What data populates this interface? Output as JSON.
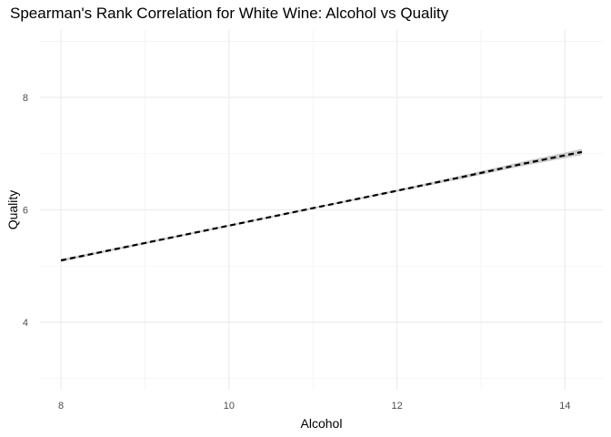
{
  "chart_data": {
    "type": "line",
    "title": "Spearman's Rank Correlation for White Wine: Alcohol vs Quality",
    "xlabel": "Alcohol",
    "ylabel": "Quality",
    "xlim": [
      7.75,
      14.45
    ],
    "ylim": [
      2.8,
      9.2
    ],
    "x_ticks": [
      8,
      10,
      12,
      14
    ],
    "y_ticks": [
      4,
      6,
      8
    ],
    "grid": true,
    "series": [
      {
        "style": "dashed",
        "color": "#000000",
        "band_color": "#bdbdbd",
        "x": [
          8.0,
          9.0,
          10.0,
          11.0,
          12.0,
          12.7,
          13.5,
          14.2
        ],
        "y": [
          5.1,
          5.41,
          5.72,
          6.03,
          6.34,
          6.56,
          6.82,
          7.03
        ],
        "band_halfwidth": [
          0.025,
          0.02,
          0.015,
          0.015,
          0.02,
          0.03,
          0.04,
          0.055
        ]
      }
    ]
  }
}
